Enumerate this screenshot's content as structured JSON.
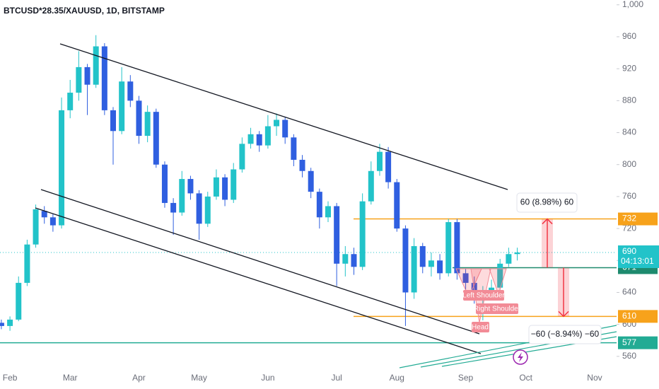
{
  "chart_data": {
    "type": "candlestick",
    "title": "BTCUSD*28.35/XAUUSD, 1D, BITSTAMP",
    "categories": [
      null,
      "Feb",
      null,
      null,
      null,
      null,
      null,
      null,
      "Mar",
      null,
      null,
      null,
      null,
      null,
      null,
      null,
      "Apr",
      null,
      null,
      null,
      null,
      null,
      null,
      "May",
      null,
      null,
      null,
      null,
      null,
      null,
      null,
      "Jun",
      null,
      null,
      null,
      null,
      null,
      null,
      null,
      "Jul",
      null,
      null,
      null,
      null,
      null,
      null,
      "Aug",
      null,
      null,
      null,
      null,
      null,
      null,
      null,
      "Sep",
      null,
      null,
      null,
      null,
      null,
      null,
      "Oct",
      null,
      null,
      null,
      null,
      null,
      null,
      null,
      "Nov",
      null,
      null,
      null
    ],
    "open": [
      602,
      598,
      606,
      652,
      700,
      742,
      734,
      724,
      868,
      890,
      922,
      900,
      948,
      868,
      842,
      904,
      880,
      836,
      866,
      800,
      752,
      740,
      782,
      764,
      726,
      760,
      784,
      756,
      794,
      826,
      838,
      824,
      848,
      856,
      834,
      806,
      792,
      766,
      734,
      748,
      676,
      688,
      672,
      754,
      792,
      816,
      778,
      720,
      640,
      698,
      672,
      680,
      664,
      728,
      664,
      652,
      634,
      640,
      646,
      676,
      688,
      null,
      null,
      null,
      null,
      null,
      null,
      null,
      null,
      null,
      null,
      null,
      null
    ],
    "high": [
      606,
      610,
      660,
      706,
      750,
      748,
      738,
      884,
      906,
      942,
      926,
      962,
      952,
      872,
      922,
      912,
      886,
      874,
      870,
      804,
      758,
      792,
      786,
      768,
      766,
      794,
      788,
      802,
      834,
      846,
      842,
      862,
      864,
      860,
      838,
      812,
      796,
      770,
      754,
      752,
      698,
      696,
      764,
      804,
      826,
      822,
      782,
      724,
      708,
      702,
      690,
      688,
      732,
      732,
      670,
      660,
      648,
      656,
      682,
      696,
      696,
      null,
      null,
      null,
      null,
      null,
      null,
      null,
      null,
      null,
      null,
      null,
      null
    ],
    "low": [
      594,
      592,
      604,
      648,
      696,
      726,
      716,
      720,
      858,
      880,
      862,
      896,
      862,
      800,
      838,
      872,
      826,
      828,
      796,
      746,
      712,
      736,
      756,
      706,
      722,
      756,
      748,
      752,
      790,
      820,
      816,
      820,
      836,
      826,
      798,
      784,
      758,
      720,
      728,
      648,
      660,
      662,
      668,
      750,
      786,
      770,
      716,
      598,
      632,
      664,
      660,
      656,
      660,
      656,
      640,
      626,
      605,
      636,
      640,
      672,
      680,
      null,
      null,
      null,
      null,
      null,
      null,
      null,
      null,
      null,
      null,
      null,
      null
    ],
    "close": [
      598,
      606,
      652,
      700,
      744,
      734,
      724,
      868,
      890,
      922,
      900,
      948,
      868,
      842,
      904,
      880,
      836,
      866,
      800,
      752,
      740,
      782,
      764,
      726,
      760,
      784,
      756,
      794,
      826,
      838,
      824,
      848,
      856,
      834,
      806,
      792,
      766,
      734,
      748,
      676,
      688,
      672,
      754,
      792,
      816,
      778,
      720,
      640,
      698,
      672,
      680,
      664,
      728,
      664,
      652,
      634,
      640,
      646,
      676,
      688,
      690,
      null,
      null,
      null,
      null,
      null,
      null,
      null,
      null,
      null,
      null,
      null,
      null
    ],
    "up_color": "#22c3c9",
    "down_color": "#2f5fe0",
    "ylim": [
      528,
      1006
    ],
    "yticks": [
      560,
      600,
      640,
      680,
      720,
      760,
      800,
      840,
      880,
      920,
      960,
      {
        "value": 1000,
        "label": "1,000"
      }
    ],
    "grid": false,
    "levels": [
      {
        "value": 732,
        "color": "#f7a21b"
      },
      {
        "value": 671,
        "color": "#1e8a6e"
      },
      {
        "value": 610,
        "color": "#f7a21b"
      },
      {
        "value": 577,
        "color": "#22ab94"
      }
    ],
    "last_price": 690,
    "last_color": "#22c3c9",
    "countdown": "04:13:01",
    "measures": [
      {
        "label": "60 (8.98%) 60",
        "from": 671,
        "to": 732
      },
      {
        "label": "−60 (−8.94%) −60",
        "from": 671,
        "to": 610
      }
    ],
    "pattern_labels": [
      "Left Shoulder",
      "Right Shoulder",
      "Head"
    ]
  }
}
